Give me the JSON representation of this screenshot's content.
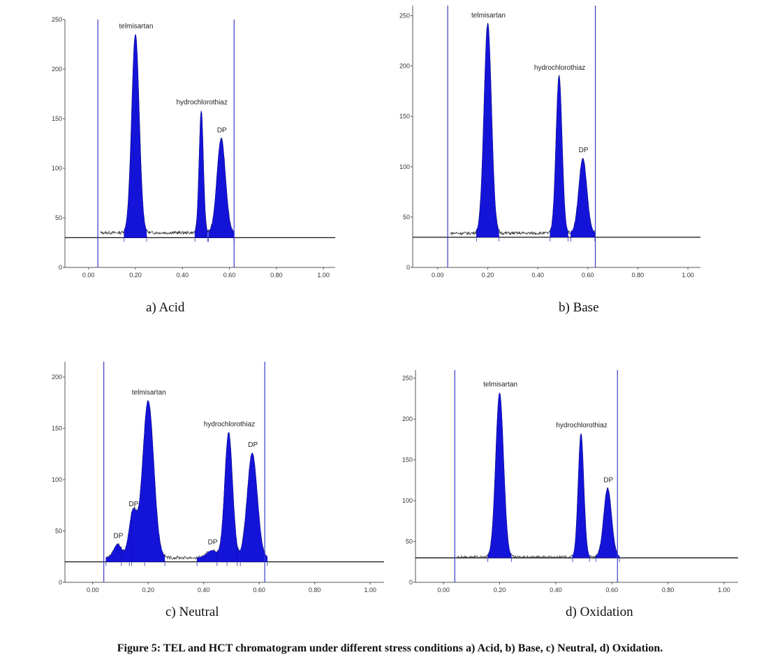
{
  "figure_caption": "Figure 5: TEL and HCT chromatogram under different stress conditions a) Acid, b) Base, c) Neutral, d) Oxidation.",
  "chart_data": [
    {
      "type": "line",
      "caption": "a)    Acid",
      "ylim": [
        0,
        250
      ],
      "xlim": [
        -0.1,
        1.05
      ],
      "yticks": [
        0,
        50,
        100,
        150,
        200,
        250
      ],
      "xticks": [
        "0.00",
        "0.20",
        "0.40",
        "0.60",
        "0.80",
        "1.00"
      ],
      "baseline": 30,
      "noise": 35,
      "front_window": [
        0.04,
        0.62
      ],
      "peaks": [
        {
          "label": "telmisartan",
          "rf": 0.2,
          "height": 235,
          "width": 0.016
        },
        {
          "label": "hydrochlorothiaz",
          "rf": 0.48,
          "height": 158,
          "width": 0.009
        },
        {
          "label": "DP",
          "rf": 0.565,
          "height": 130,
          "width": 0.018
        }
      ]
    },
    {
      "type": "line",
      "caption": "b) Base",
      "ylim": [
        0,
        260
      ],
      "xlim": [
        -0.1,
        1.05
      ],
      "yticks": [
        0,
        50,
        100,
        150,
        200,
        250
      ],
      "xticks": [
        "0.00",
        "0.20",
        "0.40",
        "0.60",
        "0.80",
        "1.00"
      ],
      "baseline": 30,
      "noise": 34,
      "front_window": [
        0.04,
        0.63
      ],
      "peaks": [
        {
          "label": "telmisartan",
          "rf": 0.2,
          "height": 242,
          "width": 0.015
        },
        {
          "label": "hydrochlorothiaz",
          "rf": 0.485,
          "height": 190,
          "width": 0.012
        },
        {
          "label": "DP",
          "rf": 0.58,
          "height": 108,
          "width": 0.016
        }
      ]
    },
    {
      "type": "line",
      "caption": "c) Neutral",
      "ylim": [
        0,
        215
      ],
      "xlim": [
        -0.1,
        1.05
      ],
      "yticks": [
        0,
        50,
        100,
        150,
        200
      ],
      "xticks": [
        "0.00",
        "0.20",
        "0.40",
        "0.60",
        "0.80",
        "1.00"
      ],
      "baseline": 20,
      "noise": 24,
      "front_window": [
        0.04,
        0.62
      ],
      "peaks": [
        {
          "label": "DP",
          "rf": 0.09,
          "height": 37,
          "width": 0.014
        },
        {
          "label": "DP",
          "rf": 0.145,
          "height": 68,
          "width": 0.014
        },
        {
          "label": "telmisartan",
          "rf": 0.2,
          "height": 177,
          "width": 0.02
        },
        {
          "label": "DP",
          "rf": 0.43,
          "height": 31,
          "width": 0.018
        },
        {
          "label": "hydrochlorothiaz",
          "rf": 0.49,
          "height": 146,
          "width": 0.014
        },
        {
          "label": "DP",
          "rf": 0.575,
          "height": 126,
          "width": 0.018
        }
      ]
    },
    {
      "type": "line",
      "caption": "d) Oxidation",
      "ylim": [
        0,
        260
      ],
      "xlim": [
        -0.1,
        1.05
      ],
      "yticks": [
        0,
        50,
        100,
        150,
        200,
        250
      ],
      "xticks": [
        "0.00",
        "0.20",
        "0.40",
        "0.60",
        "0.80",
        "1.00"
      ],
      "baseline": 30,
      "noise": 31,
      "front_window": [
        0.04,
        0.62
      ],
      "peaks": [
        {
          "label": "telmisartan",
          "rf": 0.2,
          "height": 232,
          "width": 0.014
        },
        {
          "label": "hydrochlorothiaz",
          "rf": 0.49,
          "height": 182,
          "width": 0.01
        },
        {
          "label": "DP",
          "rf": 0.585,
          "height": 115,
          "width": 0.014
        }
      ]
    }
  ]
}
